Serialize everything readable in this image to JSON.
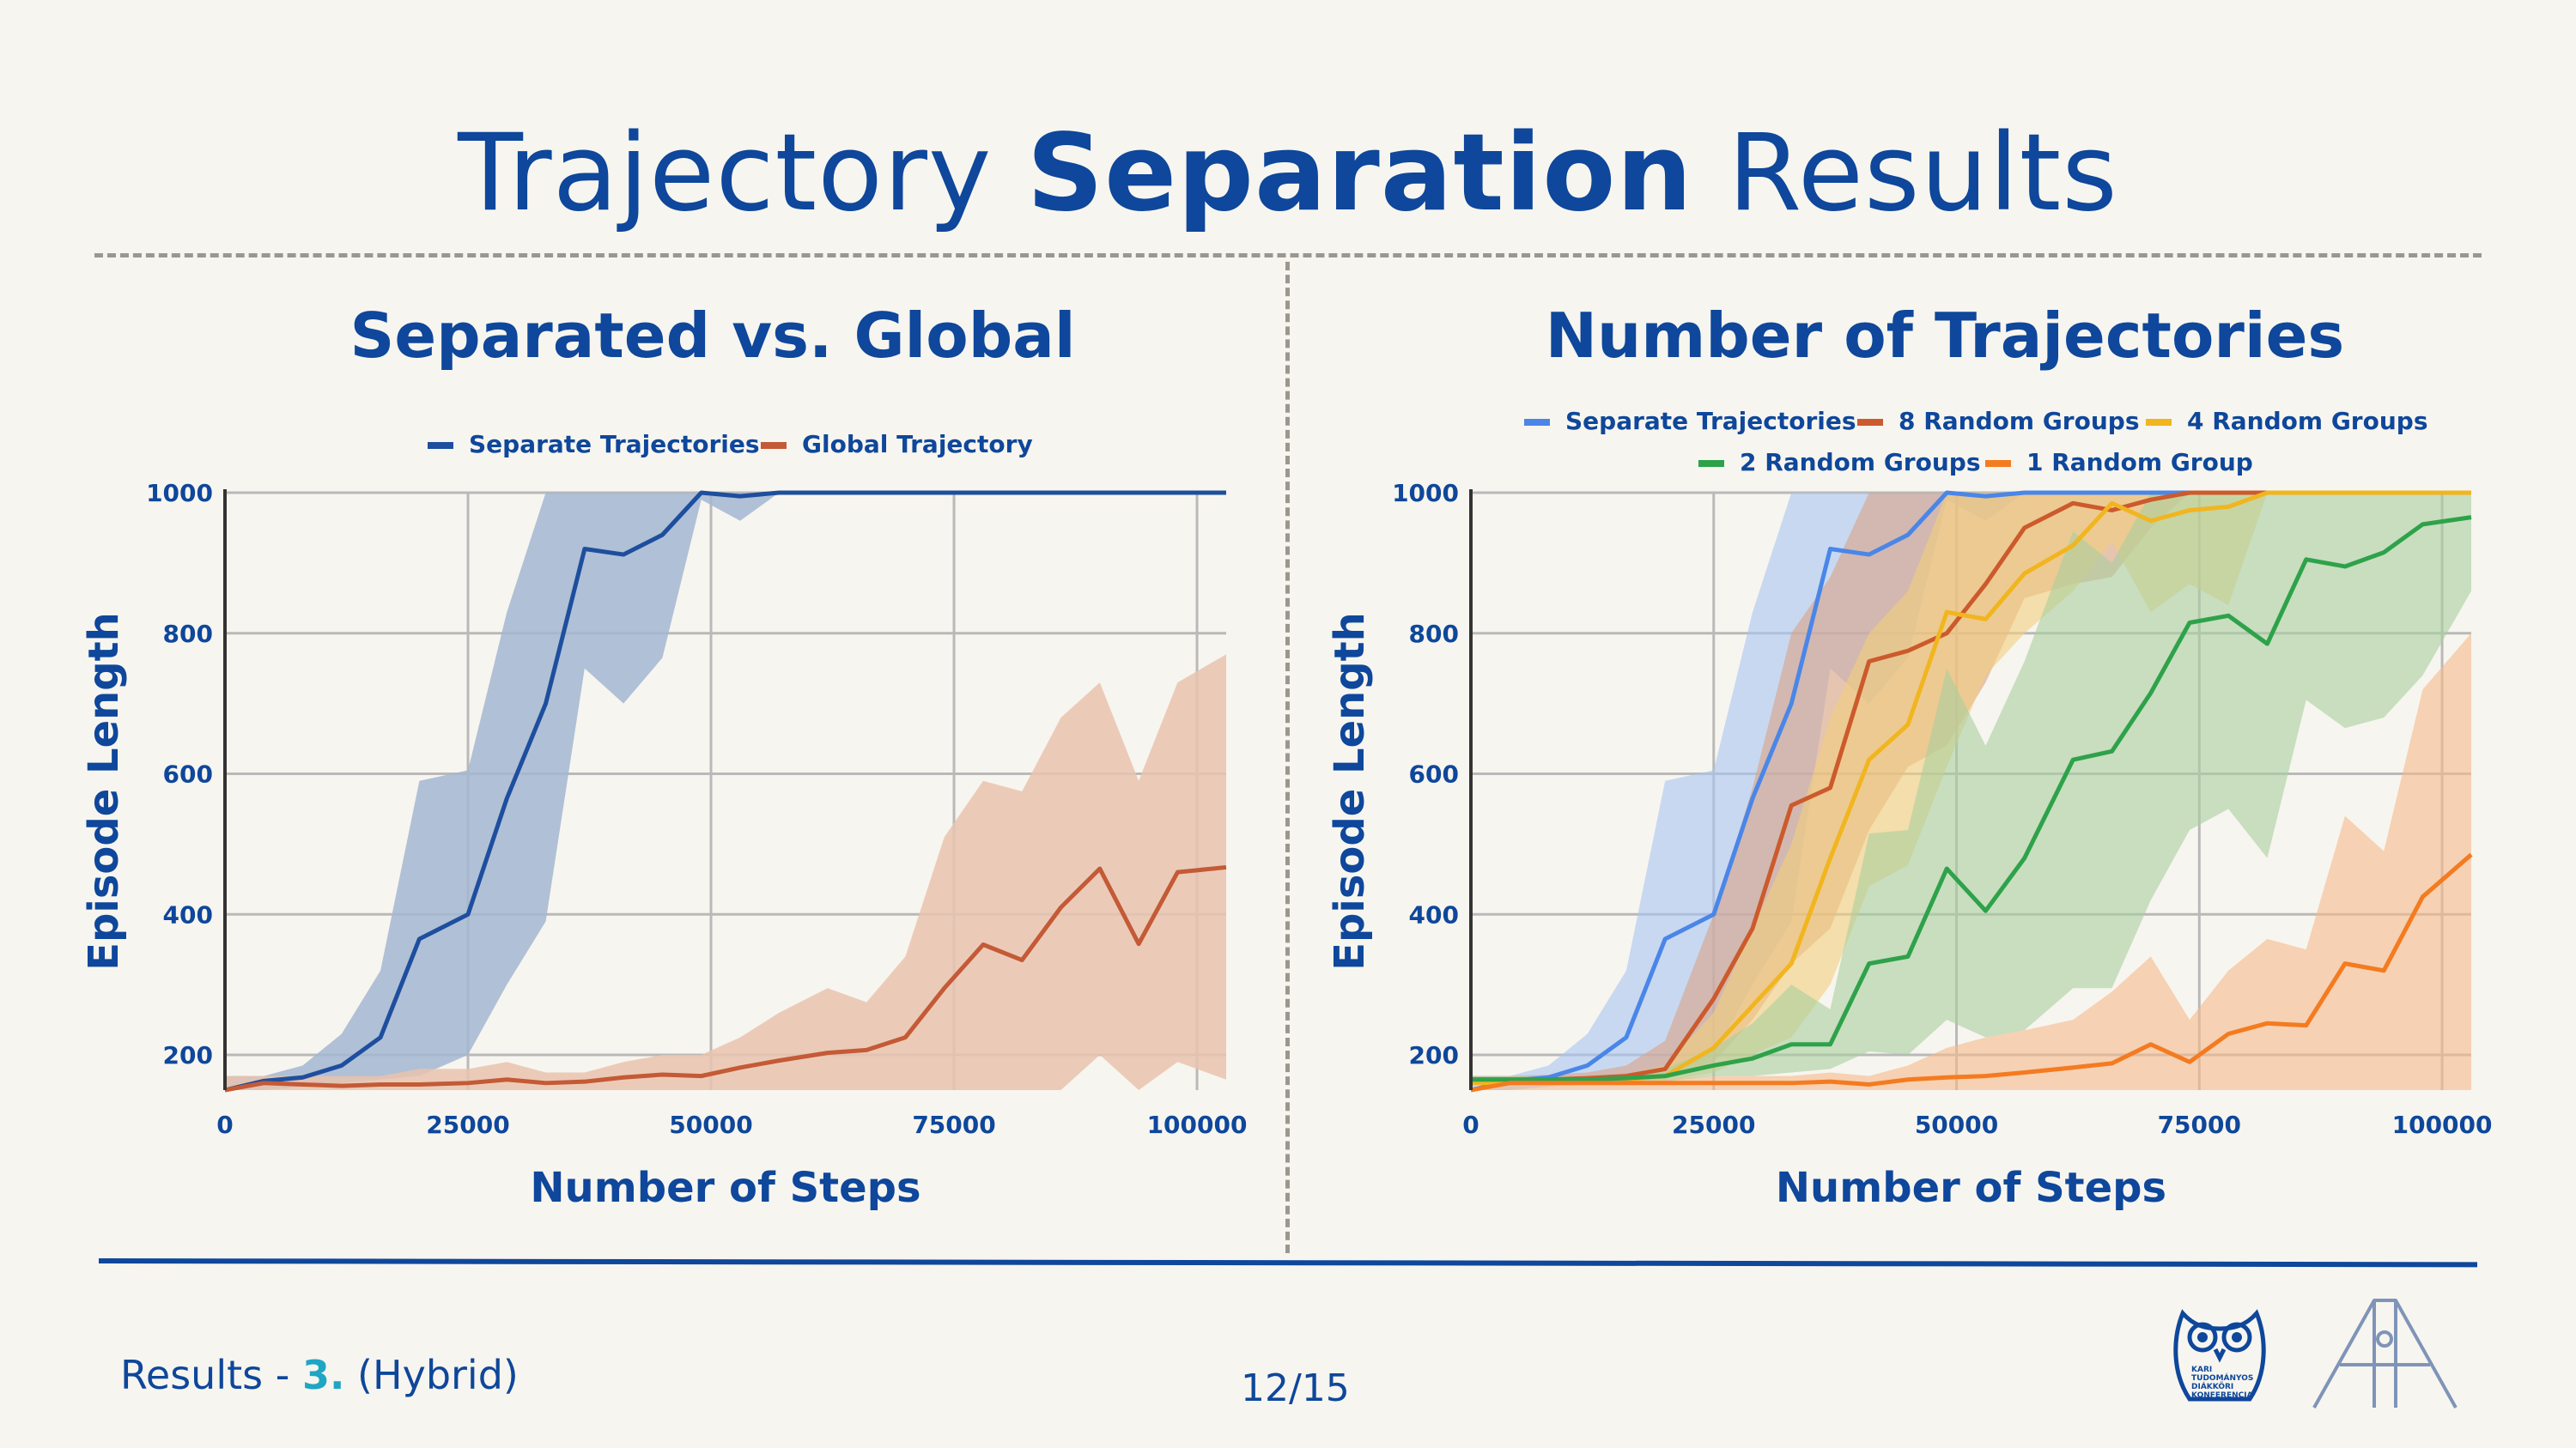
{
  "slide": {
    "title_plain_1": "Trajectory ",
    "title_bold": "Separation",
    "title_plain_2": " Results",
    "footer_prefix": "Results - ",
    "footer_number": "3.",
    "footer_suffix": " (Hybrid)",
    "page": "12/15",
    "logo_text": [
      "KARI",
      "TUDOMÁNYOS",
      "DIÁKKÖRI",
      "KONFERENCIA"
    ]
  },
  "colors": {
    "brand": "#0e479b",
    "accent": "#1ea6c4",
    "background": "#f7f5ef"
  },
  "chart_data": [
    {
      "type": "line",
      "title": "Separated vs. Global",
      "xlabel": "Number of Steps",
      "ylabel": "Episode Length",
      "xlim": [
        0,
        103000
      ],
      "ylim": [
        150,
        1000
      ],
      "xticks": [
        0,
        25000,
        50000,
        75000,
        100000
      ],
      "yticks": [
        200,
        400,
        600,
        800,
        1000
      ],
      "grid": true,
      "legend_position": "top",
      "x": [
        0,
        4000,
        8000,
        12000,
        16000,
        20000,
        25000,
        29000,
        33000,
        37000,
        41000,
        45000,
        49000,
        53000,
        57000,
        62000,
        66000,
        70000,
        74000,
        78000,
        82000,
        86000,
        90000,
        94000,
        98000,
        103000
      ],
      "series": [
        {
          "name": "Separate Trajectories",
          "color": "#1e4e9e",
          "band_color": "#a3b6d1",
          "values": [
            150,
            163,
            168,
            185,
            225,
            365,
            400,
            565,
            700,
            920,
            912,
            940,
            1000,
            995,
            1000,
            1000,
            1000,
            1000,
            1000,
            1000,
            1000,
            1000,
            1000,
            1000,
            1000,
            1000
          ],
          "lower": [
            150,
            150,
            155,
            160,
            165,
            170,
            200,
            300,
            390,
            750,
            700,
            765,
            990,
            960,
            1000,
            1000,
            1000,
            1000,
            1000,
            1000,
            1000,
            1000,
            1000,
            1000,
            1000,
            1000
          ],
          "upper": [
            170,
            170,
            185,
            230,
            320,
            590,
            605,
            830,
            1000,
            1000,
            1000,
            1000,
            1000,
            1000,
            1000,
            1000,
            1000,
            1000,
            1000,
            1000,
            1000,
            1000,
            1000,
            1000,
            1000,
            1000
          ]
        },
        {
          "name": "Global Trajectory",
          "color": "#c45a36",
          "band_color": "#e9c3ae",
          "values": [
            150,
            160,
            158,
            156,
            158,
            158,
            160,
            165,
            160,
            162,
            168,
            172,
            170,
            182,
            192,
            203,
            207,
            225,
            295,
            357,
            335,
            410,
            465,
            358,
            460,
            467
          ],
          "lower": [
            150,
            150,
            150,
            150,
            150,
            150,
            150,
            150,
            150,
            150,
            150,
            150,
            150,
            150,
            150,
            150,
            150,
            150,
            150,
            150,
            150,
            150,
            200,
            150,
            190,
            165
          ],
          "upper": [
            170,
            170,
            170,
            170,
            170,
            180,
            180,
            190,
            175,
            175,
            190,
            200,
            200,
            225,
            260,
            295,
            275,
            340,
            510,
            590,
            575,
            680,
            730,
            590,
            730,
            770
          ]
        }
      ]
    },
    {
      "type": "line",
      "title": "Number of Trajectories",
      "xlabel": "Number of Steps",
      "ylabel": "Episode Length",
      "xlim": [
        0,
        103000
      ],
      "ylim": [
        150,
        1000
      ],
      "xticks": [
        0,
        25000,
        50000,
        75000,
        100000
      ],
      "yticks": [
        200,
        400,
        600,
        800,
        1000
      ],
      "grid": true,
      "legend_position": "top",
      "x": [
        0,
        4000,
        8000,
        12000,
        16000,
        20000,
        25000,
        29000,
        33000,
        37000,
        41000,
        45000,
        49000,
        53000,
        57000,
        62000,
        66000,
        70000,
        74000,
        78000,
        82000,
        86000,
        90000,
        94000,
        98000,
        103000
      ],
      "series": [
        {
          "name": "Separate Trajectories",
          "color": "#4a86e8",
          "band_color": "#a9c4f2",
          "values": [
            150,
            163,
            168,
            185,
            225,
            365,
            400,
            565,
            700,
            920,
            912,
            940,
            1000,
            995,
            1000,
            1000,
            1000,
            1000,
            1000,
            1000,
            1000,
            1000,
            1000,
            1000,
            1000,
            1000
          ],
          "lower": [
            150,
            150,
            155,
            160,
            165,
            170,
            200,
            300,
            390,
            750,
            700,
            765,
            990,
            960,
            1000,
            1000,
            1000,
            1000,
            1000,
            1000,
            1000,
            1000,
            1000,
            1000,
            1000,
            1000
          ],
          "upper": [
            170,
            170,
            185,
            230,
            320,
            590,
            605,
            830,
            1000,
            1000,
            1000,
            1000,
            1000,
            1000,
            1000,
            1000,
            1000,
            1000,
            1000,
            1000,
            1000,
            1000,
            1000,
            1000,
            1000,
            1000
          ]
        },
        {
          "name": "8 Random Groups",
          "color": "#cc5a2c",
          "band_color": "#d9a386",
          "values": [
            165,
            165,
            165,
            167,
            170,
            180,
            280,
            380,
            555,
            580,
            760,
            775,
            800,
            870,
            950,
            985,
            975,
            990,
            1000,
            1000,
            1000,
            1000,
            1000,
            1000,
            1000,
            1000
          ],
          "lower": [
            160,
            160,
            160,
            160,
            163,
            165,
            190,
            250,
            330,
            380,
            520,
            610,
            640,
            730,
            850,
            870,
            880,
            950,
            1000,
            1000,
            1000,
            1000,
            1000,
            1000,
            1000,
            1000
          ],
          "upper": [
            170,
            170,
            172,
            175,
            185,
            220,
            400,
            580,
            800,
            880,
            1000,
            1000,
            1000,
            1000,
            1000,
            1000,
            1000,
            1000,
            1000,
            1000,
            1000,
            1000,
            1000,
            1000,
            1000,
            1000
          ]
        },
        {
          "name": "4 Random Groups",
          "color": "#f1b51f",
          "band_color": "#f2cf7d",
          "values": [
            160,
            160,
            162,
            162,
            165,
            170,
            210,
            270,
            330,
            480,
            620,
            670,
            830,
            820,
            885,
            925,
            985,
            960,
            975,
            980,
            1000,
            1000,
            1000,
            1000,
            1000,
            1000
          ],
          "lower": [
            160,
            160,
            160,
            160,
            160,
            162,
            175,
            200,
            225,
            300,
            440,
            470,
            610,
            740,
            800,
            860,
            930,
            830,
            870,
            840,
            1000,
            1000,
            1000,
            1000,
            1000,
            1000
          ],
          "upper": [
            165,
            165,
            168,
            168,
            172,
            185,
            260,
            380,
            500,
            680,
            800,
            860,
            1000,
            1000,
            1000,
            1000,
            1000,
            1000,
            1000,
            1000,
            1000,
            1000,
            1000,
            1000,
            1000,
            1000
          ]
        },
        {
          "name": "2 Random Groups",
          "color": "#2ea24a",
          "band_color": "#a8cf9e",
          "values": [
            165,
            165,
            165,
            165,
            167,
            170,
            185,
            195,
            215,
            215,
            330,
            340,
            465,
            405,
            480,
            620,
            632,
            715,
            815,
            825,
            785,
            905,
            895,
            915,
            955,
            965
          ],
          "lower": [
            160,
            160,
            160,
            160,
            160,
            162,
            170,
            170,
            175,
            180,
            205,
            200,
            250,
            225,
            235,
            295,
            295,
            420,
            520,
            550,
            480,
            705,
            665,
            680,
            740,
            860
          ],
          "upper": [
            170,
            170,
            170,
            170,
            172,
            180,
            210,
            245,
            300,
            265,
            515,
            520,
            750,
            640,
            760,
            945,
            900,
            1000,
            1000,
            1000,
            1000,
            1000,
            1000,
            1000,
            1000,
            1000
          ]
        },
        {
          "name": "1 Random Group",
          "color": "#f47b20",
          "band_color": "#f5b98a",
          "values": [
            150,
            160,
            160,
            160,
            160,
            160,
            160,
            160,
            160,
            162,
            158,
            165,
            168,
            170,
            175,
            182,
            188,
            215,
            190,
            230,
            245,
            242,
            330,
            320,
            425,
            485
          ],
          "lower": [
            150,
            150,
            150,
            150,
            150,
            150,
            150,
            150,
            150,
            150,
            150,
            150,
            150,
            150,
            150,
            150,
            150,
            150,
            150,
            150,
            150,
            150,
            150,
            150,
            150,
            150
          ],
          "upper": [
            150,
            165,
            165,
            165,
            165,
            165,
            170,
            170,
            170,
            175,
            170,
            185,
            210,
            225,
            235,
            250,
            290,
            340,
            250,
            320,
            365,
            350,
            540,
            490,
            720,
            800
          ]
        }
      ]
    }
  ]
}
